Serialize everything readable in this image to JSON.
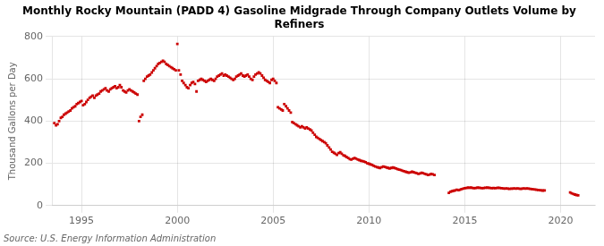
{
  "chart_data": {
    "type": "scatter",
    "title": "Monthly Rocky Mountain (PADD 4) Gasoline Midgrade Through Company Outlets Volume by\nRefiners",
    "ylabel": "Thousand Gallons per Day",
    "annotations": [
      "Source: U.S. Energy Information Administration"
    ],
    "color": "#cc0000",
    "marker": "square",
    "grid": true,
    "xlim": [
      1993.5,
      2021.8
    ],
    "xticks": [
      1995,
      2000,
      2005,
      2010,
      2015,
      2020
    ],
    "ylim": [
      0,
      800
    ],
    "yticks": [
      0,
      200,
      400,
      600,
      800
    ],
    "x": [
      1993.58,
      1993.67,
      1993.75,
      1993.83,
      1993.92,
      1994.0,
      1994.08,
      1994.17,
      1994.25,
      1994.33,
      1994.42,
      1994.5,
      1994.58,
      1994.67,
      1994.75,
      1994.83,
      1994.92,
      1995.0,
      1995.08,
      1995.17,
      1995.25,
      1995.33,
      1995.42,
      1995.5,
      1995.58,
      1995.67,
      1995.75,
      1995.83,
      1995.92,
      1996.0,
      1996.08,
      1996.17,
      1996.25,
      1996.33,
      1996.42,
      1996.5,
      1996.58,
      1996.67,
      1996.75,
      1996.83,
      1996.92,
      1997.0,
      1997.08,
      1997.17,
      1997.25,
      1997.33,
      1997.42,
      1997.5,
      1997.58,
      1997.67,
      1997.75,
      1997.83,
      1997.92,
      1998.0,
      1998.08,
      1998.17,
      1998.25,
      1998.33,
      1998.42,
      1998.5,
      1998.58,
      1998.67,
      1998.75,
      1998.83,
      1998.92,
      1999.0,
      1999.08,
      1999.17,
      1999.25,
      1999.33,
      1999.42,
      1999.5,
      1999.58,
      1999.67,
      1999.75,
      1999.83,
      1999.92,
      2000.0,
      2000.08,
      2000.17,
      2000.25,
      2000.33,
      2000.42,
      2000.5,
      2000.58,
      2000.67,
      2000.75,
      2000.83,
      2000.92,
      2001.0,
      2001.08,
      2001.17,
      2001.25,
      2001.33,
      2001.42,
      2001.5,
      2001.58,
      2001.67,
      2001.75,
      2001.83,
      2001.92,
      2002.0,
      2002.08,
      2002.17,
      2002.25,
      2002.33,
      2002.42,
      2002.5,
      2002.58,
      2002.67,
      2002.75,
      2002.83,
      2002.92,
      2003.0,
      2003.08,
      2003.17,
      2003.25,
      2003.33,
      2003.42,
      2003.5,
      2003.58,
      2003.67,
      2003.75,
      2003.83,
      2003.92,
      2004.0,
      2004.08,
      2004.17,
      2004.25,
      2004.33,
      2004.42,
      2004.5,
      2004.58,
      2004.67,
      2004.75,
      2004.83,
      2004.92,
      2005.0,
      2005.08,
      2005.17,
      2005.25,
      2005.33,
      2005.42,
      2005.5,
      2005.58,
      2005.67,
      2005.75,
      2005.83,
      2005.92,
      2006.0,
      2006.08,
      2006.17,
      2006.25,
      2006.33,
      2006.42,
      2006.5,
      2006.58,
      2006.67,
      2006.75,
      2006.83,
      2006.92,
      2007.0,
      2007.08,
      2007.17,
      2007.25,
      2007.33,
      2007.42,
      2007.5,
      2007.58,
      2007.67,
      2007.75,
      2007.83,
      2007.92,
      2008.0,
      2008.08,
      2008.17,
      2008.25,
      2008.33,
      2008.42,
      2008.5,
      2008.58,
      2008.67,
      2008.75,
      2008.83,
      2008.92,
      2009.0,
      2009.08,
      2009.17,
      2009.25,
      2009.33,
      2009.42,
      2009.5,
      2009.58,
      2009.67,
      2009.75,
      2009.83,
      2009.92,
      2010.0,
      2010.08,
      2010.17,
      2010.25,
      2010.33,
      2010.42,
      2010.5,
      2010.58,
      2010.67,
      2010.75,
      2010.83,
      2010.92,
      2011.0,
      2011.08,
      2011.17,
      2011.25,
      2011.33,
      2011.42,
      2011.5,
      2011.58,
      2011.67,
      2011.75,
      2011.83,
      2011.92,
      2012.0,
      2012.08,
      2012.17,
      2012.25,
      2012.33,
      2012.42,
      2012.5,
      2012.58,
      2012.67,
      2012.75,
      2012.83,
      2012.92,
      2013.0,
      2013.08,
      2013.17,
      2013.25,
      2013.33,
      2013.42,
      2014.17,
      2014.25,
      2014.33,
      2014.42,
      2014.5,
      2014.58,
      2014.67,
      2014.75,
      2014.83,
      2014.92,
      2015.0,
      2015.08,
      2015.17,
      2015.25,
      2015.33,
      2015.42,
      2015.5,
      2015.58,
      2015.67,
      2015.75,
      2015.83,
      2015.92,
      2016.0,
      2016.08,
      2016.17,
      2016.25,
      2016.33,
      2016.42,
      2016.5,
      2016.58,
      2016.67,
      2016.75,
      2016.83,
      2016.92,
      2017.0,
      2017.08,
      2017.17,
      2017.25,
      2017.33,
      2017.42,
      2017.5,
      2017.58,
      2017.67,
      2017.75,
      2017.83,
      2017.92,
      2018.0,
      2018.08,
      2018.17,
      2018.25,
      2018.33,
      2018.42,
      2018.5,
      2018.58,
      2018.67,
      2018.75,
      2018.83,
      2018.92,
      2019.0,
      2019.08,
      2019.17,
      2020.5,
      2020.58,
      2020.67,
      2020.75,
      2020.83,
      2020.92
    ],
    "values": [
      390,
      380,
      385,
      400,
      415,
      420,
      430,
      435,
      440,
      445,
      450,
      460,
      465,
      470,
      480,
      485,
      490,
      495,
      475,
      480,
      490,
      500,
      510,
      515,
      520,
      510,
      520,
      525,
      530,
      540,
      545,
      550,
      555,
      545,
      540,
      550,
      555,
      560,
      565,
      555,
      560,
      570,
      560,
      545,
      540,
      535,
      545,
      550,
      545,
      540,
      535,
      530,
      525,
      400,
      420,
      430,
      590,
      600,
      610,
      615,
      620,
      630,
      640,
      650,
      660,
      670,
      675,
      680,
      685,
      680,
      670,
      665,
      660,
      655,
      650,
      645,
      640,
      765,
      640,
      620,
      590,
      580,
      570,
      560,
      555,
      570,
      580,
      585,
      575,
      540,
      590,
      595,
      600,
      595,
      590,
      585,
      590,
      595,
      600,
      595,
      590,
      600,
      610,
      615,
      620,
      625,
      615,
      620,
      615,
      610,
      605,
      600,
      595,
      600,
      610,
      615,
      620,
      625,
      615,
      610,
      615,
      620,
      610,
      600,
      595,
      610,
      620,
      625,
      630,
      625,
      615,
      605,
      595,
      590,
      585,
      580,
      595,
      600,
      590,
      580,
      465,
      460,
      455,
      450,
      480,
      470,
      460,
      450,
      440,
      395,
      390,
      385,
      380,
      375,
      370,
      375,
      370,
      365,
      370,
      365,
      360,
      355,
      345,
      335,
      325,
      320,
      315,
      310,
      305,
      300,
      295,
      285,
      275,
      265,
      255,
      250,
      245,
      240,
      248,
      252,
      245,
      238,
      235,
      230,
      225,
      220,
      218,
      222,
      225,
      222,
      218,
      215,
      212,
      210,
      208,
      205,
      200,
      198,
      195,
      192,
      188,
      185,
      182,
      180,
      178,
      182,
      185,
      183,
      180,
      178,
      176,
      178,
      180,
      178,
      175,
      172,
      170,
      168,
      165,
      163,
      160,
      158,
      155,
      157,
      160,
      158,
      155,
      153,
      150,
      152,
      155,
      153,
      150,
      148,
      145,
      147,
      150,
      148,
      145,
      60,
      65,
      68,
      70,
      72,
      75,
      73,
      75,
      78,
      80,
      82,
      83,
      85,
      84,
      85,
      83,
      82,
      83,
      85,
      84,
      83,
      82,
      83,
      84,
      85,
      84,
      83,
      82,
      83,
      82,
      83,
      84,
      83,
      82,
      81,
      80,
      81,
      80,
      79,
      80,
      80,
      81,
      80,
      81,
      80,
      79,
      80,
      81,
      80,
      81,
      80,
      79,
      78,
      77,
      76,
      75,
      74,
      73,
      72,
      71,
      72,
      62,
      58,
      55,
      52,
      50,
      48
    ]
  }
}
